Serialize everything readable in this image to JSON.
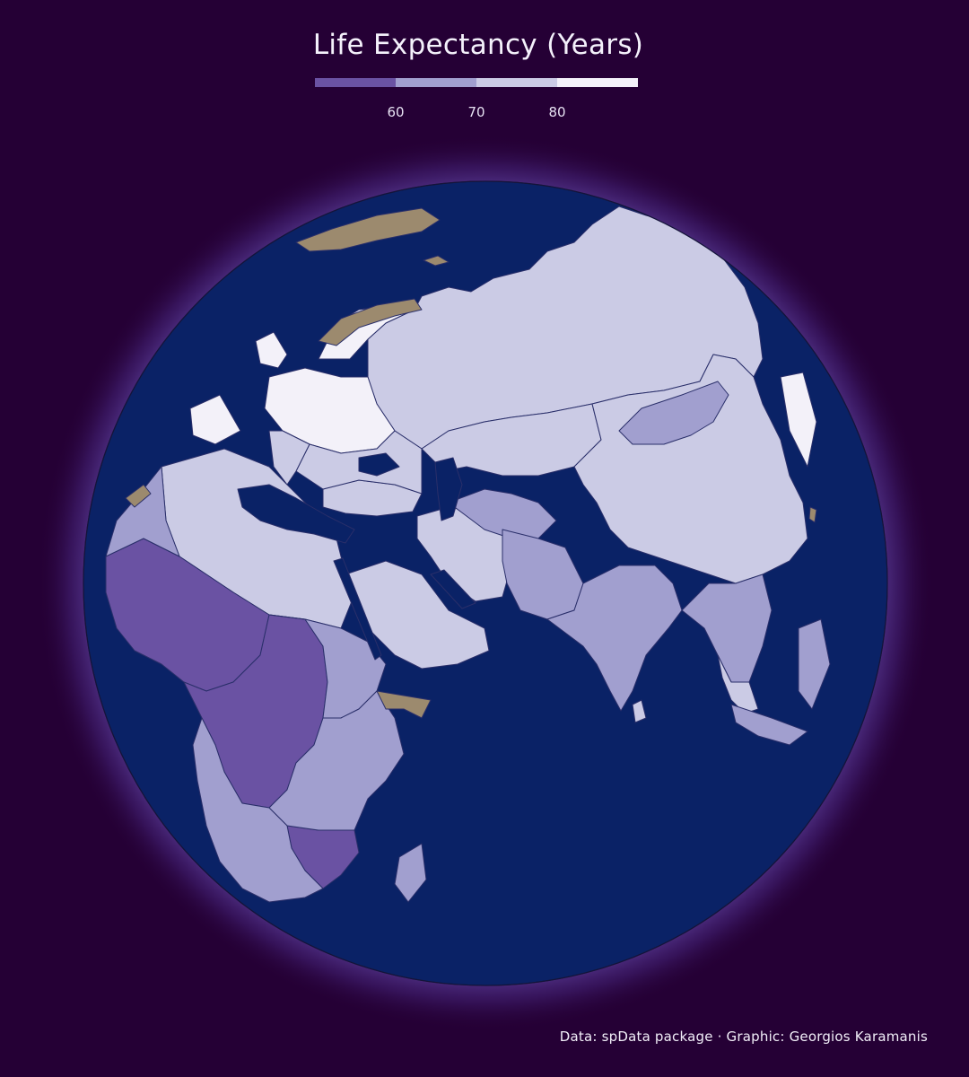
{
  "title": "Life Expectancy (Years)",
  "legend": {
    "colors": [
      "#6a52a3",
      "#a19fcf",
      "#cbcbe5",
      "#f3f1f9"
    ],
    "ticks": [
      "60",
      "70",
      "80"
    ],
    "tick_values": [
      60,
      70,
      80
    ],
    "no_data_color": "#9c8a6e"
  },
  "map": {
    "projection": "orthographic",
    "ocean_color": "#0a2266",
    "glow_color": "#5a3ea0",
    "border_color": "#2a2f6a"
  },
  "caption": "Data: spData package · Graphic: Georgios Karamanis"
}
